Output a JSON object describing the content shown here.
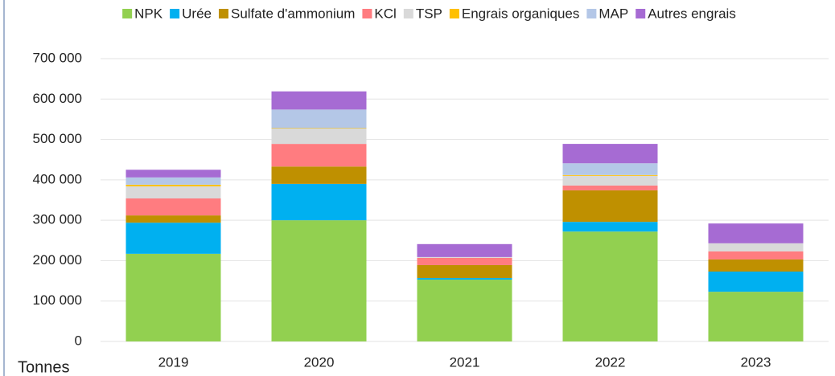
{
  "chart_data": {
    "type": "stacked_bar",
    "categories": [
      "2019",
      "2020",
      "2021",
      "2022",
      "2023"
    ],
    "y_label": "Tonnes",
    "series": [
      {
        "name": "NPK",
        "color": "#92d050",
        "values": [
          217000,
          300000,
          153000,
          272000,
          123000
        ]
      },
      {
        "name": "Urée",
        "color": "#00b0f0",
        "values": [
          77000,
          90000,
          4000,
          24000,
          50000
        ]
      },
      {
        "name": "Sulfate d'ammonium",
        "color": "#bf9000",
        "values": [
          18000,
          43000,
          32000,
          78000,
          30000
        ]
      },
      {
        "name": "KCl",
        "color": "#ff7c80",
        "values": [
          42000,
          56000,
          18000,
          12000,
          20000
        ]
      },
      {
        "name": "TSP",
        "color": "#d9d9d9",
        "values": [
          30000,
          38000,
          2000,
          24000,
          20000
        ]
      },
      {
        "name": "Engrais organiques",
        "color": "#ffc000",
        "values": [
          4000,
          1000,
          0,
          2000,
          0
        ]
      },
      {
        "name": "MAP",
        "color": "#b4c7e7",
        "values": [
          18000,
          46000,
          0,
          29000,
          0
        ]
      },
      {
        "name": "Autres engrais",
        "color": "#a66bd3",
        "values": [
          19000,
          45000,
          32000,
          48000,
          49000
        ]
      }
    ],
    "ylim": [
      0,
      700000
    ],
    "yticks": [
      0,
      {
        "value": 100000,
        "label": "100 000"
      },
      {
        "value": 200000,
        "label": "200 000"
      },
      {
        "value": 300000,
        "label": "300 000"
      },
      {
        "value": 400000,
        "label": "400 000"
      },
      {
        "value": 500000,
        "label": "500 000"
      },
      {
        "value": 600000,
        "label": "600 000"
      },
      {
        "value": 700000,
        "label": "700 000"
      }
    ],
    "grid": true,
    "legend": "top"
  }
}
